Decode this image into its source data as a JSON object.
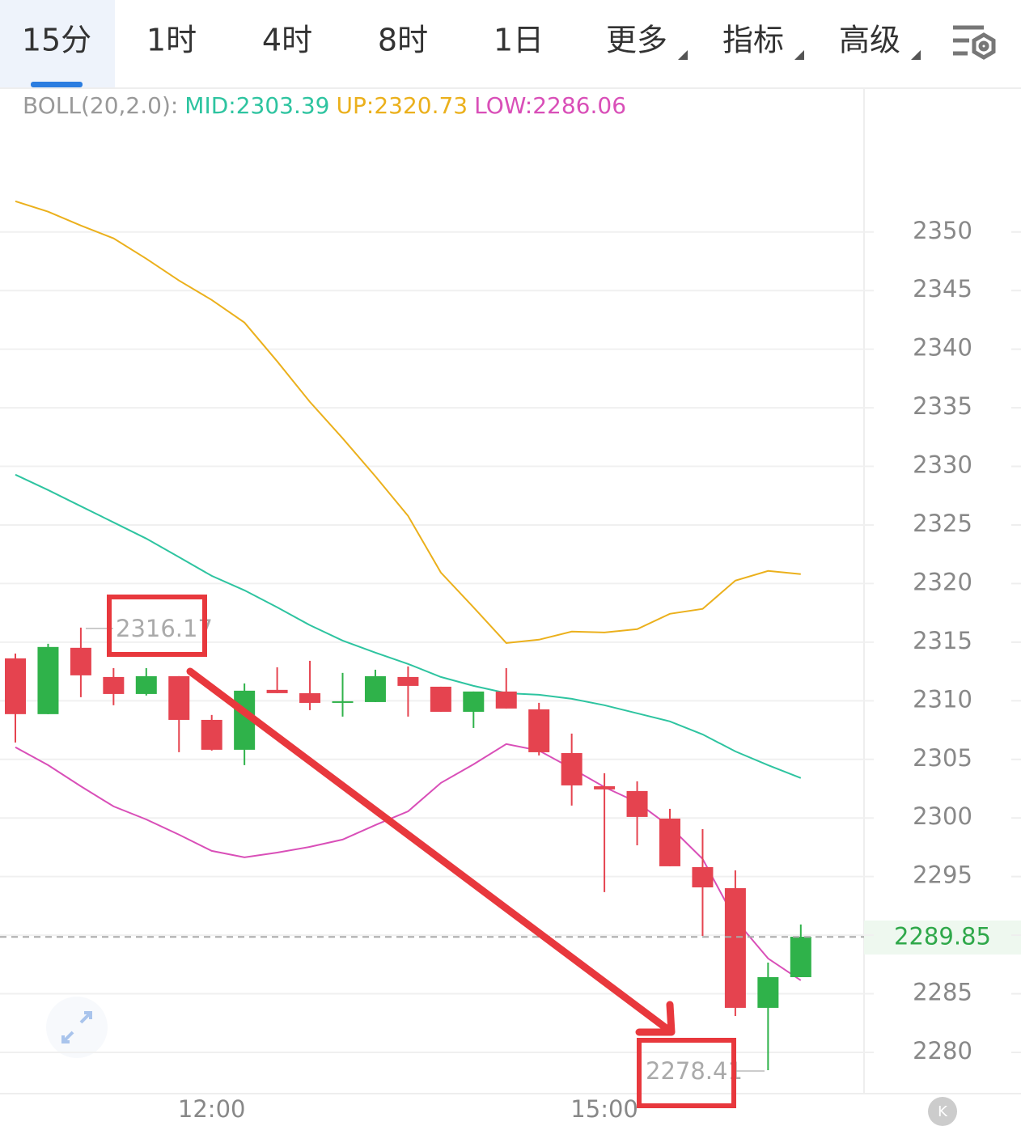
{
  "tabs": [
    "15分",
    "1时",
    "4时",
    "8时",
    "1日",
    "更多",
    "指标",
    "高级"
  ],
  "indicator_label": "BOLL(20,2.0):",
  "chart_data": {
    "type": "candlestick",
    "categories": [
      null,
      null,
      null,
      null,
      null,
      null,
      "12:00",
      null,
      null,
      null,
      null,
      null,
      null,
      null,
      null,
      null,
      null,
      null,
      "15:00",
      null,
      null,
      null,
      null,
      null,
      null
    ],
    "open": [
      2313.62,
      2308.86,
      2314.52,
      2312.03,
      2310.58,
      2312.1,
      2308.37,
      2305.82,
      2310.93,
      2310.65,
      2309.82,
      2309.89,
      2312.03,
      2311.2,
      2309.06,
      2310.79,
      2309.27,
      2305.54,
      2302.71,
      2302.3,
      2299.95,
      2295.81,
      2294.01,
      2283.8,
      2286.42
    ],
    "high": [
      2314.03,
      2314.86,
      2316.24,
      2312.79,
      2312.79,
      2312.1,
      2308.79,
      2311.48,
      2312.86,
      2313.41,
      2312.38,
      2312.65,
      2312.93,
      2311.2,
      2310.79,
      2312.79,
      2309.82,
      2307.2,
      2303.82,
      2303.13,
      2300.78,
      2299.05,
      2295.53,
      2287.66,
      2290.91
    ],
    "low": [
      2306.44,
      2308.86,
      2310.31,
      2309.62,
      2310.45,
      2305.61,
      2305.75,
      2304.51,
      2310.65,
      2309.2,
      2308.65,
      2309.89,
      2308.65,
      2309.06,
      2307.68,
      2309.34,
      2305.34,
      2301.06,
      2293.67,
      2297.67,
      2295.88,
      2289.94,
      2283.11,
      2278.48,
      2286.42
    ],
    "close": [
      2308.86,
      2314.59,
      2312.17,
      2310.58,
      2312.1,
      2308.37,
      2305.82,
      2310.86,
      2310.65,
      2309.82,
      2309.96,
      2312.1,
      2311.27,
      2309.06,
      2310.79,
      2309.34,
      2305.61,
      2302.78,
      2302.44,
      2300.09,
      2295.88,
      2294.08,
      2283.8,
      2286.42,
      2289.87
    ],
    "up_color": "#2fb24a",
    "down_color": "#e5434f",
    "series": [
      {
        "name": "MID:2303.39",
        "color": "#2ec4a0",
        "values": [
          2329.29,
          2327.98,
          2326.6,
          2325.22,
          2323.84,
          2322.25,
          2320.66,
          2319.42,
          2317.97,
          2316.45,
          2315.14,
          2314.11,
          2313.14,
          2312.03,
          2311.27,
          2310.65,
          2310.51,
          2310.17,
          2309.62,
          2308.93,
          2308.24,
          2307.13,
          2305.68,
          2304.51,
          2303.41
        ]
      },
      {
        "name": "UP:2320.73",
        "color": "#ebb01c",
        "values": [
          2352.62,
          2351.73,
          2350.55,
          2349.45,
          2347.72,
          2345.86,
          2344.2,
          2342.27,
          2338.96,
          2335.5,
          2332.4,
          2329.15,
          2325.77,
          2320.94,
          2317.97,
          2314.93,
          2315.21,
          2315.9,
          2315.83,
          2316.11,
          2317.42,
          2317.84,
          2320.25,
          2321.08,
          2320.8
        ]
      },
      {
        "name": "LOW:2286.06",
        "color": "#d94fb8",
        "values": [
          2306.03,
          2304.51,
          2302.71,
          2300.99,
          2299.88,
          2298.57,
          2297.19,
          2296.64,
          2297.05,
          2297.54,
          2298.16,
          2299.4,
          2300.57,
          2302.99,
          2304.58,
          2306.31,
          2305.75,
          2304.23,
          2302.64,
          2301.33,
          2299.26,
          2296.5,
          2291.32,
          2288.01,
          2286.15
        ]
      }
    ],
    "annotations": [
      2316.17,
      2278.41
    ],
    "last_price": 2289.85,
    "ylim": [
      2276.48,
      2362.2
    ],
    "yticks": [
      2280,
      2285,
      2290,
      2295,
      2300,
      2305,
      2310,
      2315,
      2320,
      2325,
      2330,
      2335,
      2340,
      2345,
      2350
    ],
    "grid": true
  }
}
